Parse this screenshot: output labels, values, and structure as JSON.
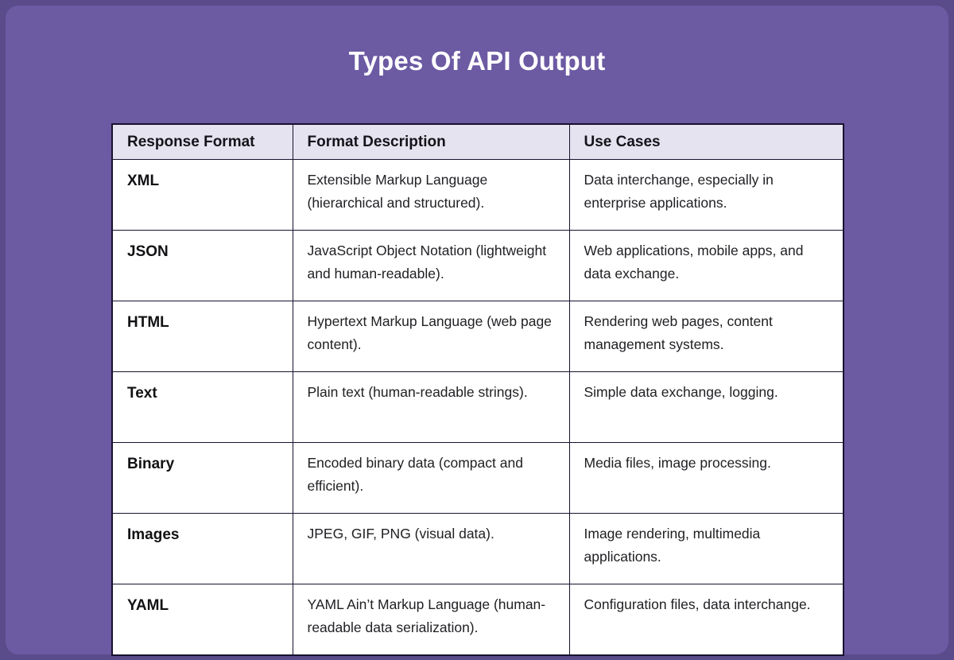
{
  "title": "Types Of API Output",
  "colors": {
    "background": "#6c5aa3",
    "background_edge": "#5a4b8a",
    "header_bg": "#e6e3f0",
    "cell_bg": "#ffffff",
    "border": "#18122e",
    "title_text": "#ffffff"
  },
  "table": {
    "headers": {
      "format": "Response Format",
      "description": "Format Description",
      "use_cases": "Use Cases"
    },
    "rows": [
      {
        "format": "XML",
        "description": "Extensible Markup Language (hierarchical and structured).",
        "use_cases": "Data interchange, especially in enterprise applications."
      },
      {
        "format": "JSON",
        "description": "JavaScript Object Notation (lightweight and human-readable).",
        "use_cases": "Web applications, mobile apps, and data exchange."
      },
      {
        "format": "HTML",
        "description": "Hypertext Markup Language (web page content).",
        "use_cases": "Rendering web pages, content management systems."
      },
      {
        "format": "Text",
        "description": "Plain text (human-readable strings).",
        "use_cases": "Simple data exchange, logging."
      },
      {
        "format": "Binary",
        "description": "Encoded binary data (compact and efficient).",
        "use_cases": "Media files, image processing."
      },
      {
        "format": "Images",
        "description": "JPEG, GIF, PNG (visual data).",
        "use_cases": "Image rendering, multimedia applications."
      },
      {
        "format": "YAML",
        "description": "YAML Ain’t Markup Language (human-readable data serialization).",
        "use_cases": "Configuration files, data interchange."
      }
    ]
  },
  "chart_data": {
    "type": "table",
    "title": "Types Of API Output",
    "columns": [
      "Response Format",
      "Format Description",
      "Use Cases"
    ],
    "rows": [
      [
        "XML",
        "Extensible Markup Language (hierarchical and structured).",
        "Data interchange, especially in enterprise applications."
      ],
      [
        "JSON",
        "JavaScript Object Notation (lightweight and human-readable).",
        "Web applications, mobile apps, and data exchange."
      ],
      [
        "HTML",
        "Hypertext Markup Language (web page content).",
        "Rendering web pages, content management systems."
      ],
      [
        "Text",
        "Plain text (human-readable strings).",
        "Simple data exchange, logging."
      ],
      [
        "Binary",
        "Encoded binary data (compact and efficient).",
        "Media files, image processing."
      ],
      [
        "Images",
        "JPEG, GIF, PNG (visual data).",
        "Image rendering, multimedia applications."
      ],
      [
        "YAML",
        "YAML Ain’t Markup Language (human-readable data serialization).",
        "Configuration files, data interchange."
      ]
    ]
  }
}
